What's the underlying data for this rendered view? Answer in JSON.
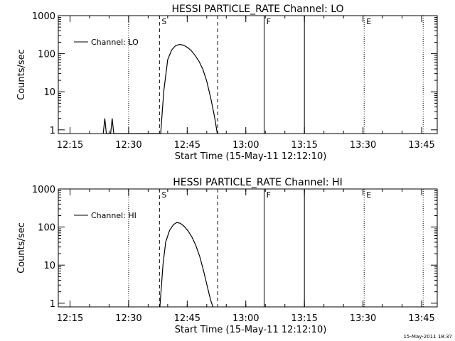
{
  "footer_timestamp": "15-May-2011 18:37",
  "chart_data": [
    {
      "type": "line",
      "title": "HESSI PARTICLE_RATE Channel: LO",
      "xlabel": "Start Time (15-May-11 12:12:10)",
      "ylabel": "Counts/sec",
      "yscale": "log",
      "x_unit": "minutes",
      "xlim": [
        732,
        829
      ],
      "ylim": [
        0.8,
        1000
      ],
      "xticks": [
        "12:15",
        "12:30",
        "12:45",
        "13:00",
        "13:15",
        "13:30",
        "13:45"
      ],
      "xtick_values": [
        735,
        750,
        765,
        780,
        795,
        810,
        825
      ],
      "yticks": [
        "1",
        "10",
        "100",
        "1000"
      ],
      "ytick_values": [
        1,
        10,
        100,
        1000
      ],
      "legend": {
        "label": "Channel: LO",
        "position": "top-left"
      },
      "markers": [
        {
          "label": "S",
          "time": 757.9,
          "style": "dashed"
        },
        {
          "label": "",
          "time": 772.8,
          "style": "dashed"
        },
        {
          "label": "F",
          "time": 784.7,
          "style": "solid"
        },
        {
          "label": "",
          "time": 795.0,
          "style": "solid"
        },
        {
          "label": "E",
          "time": 810.3,
          "style": "dotted"
        },
        {
          "label": "",
          "time": 750.0,
          "style": "dotted"
        },
        {
          "label": "",
          "time": 825.4,
          "style": "dotted"
        }
      ],
      "series": [
        {
          "x": [
            743.5,
            743.9,
            744.3,
            745.4,
            745.8,
            746.2,
            758.2,
            759.0,
            760.0,
            761.0,
            762.0,
            763.0,
            764.0,
            765.0,
            766.0,
            767.0,
            768.0,
            769.0,
            770.0,
            771.0,
            772.0,
            772.7
          ],
          "y": [
            0.8,
            2.0,
            0.8,
            0.8,
            2.0,
            0.8,
            0.8,
            10.5,
            70,
            125,
            162,
            175,
            168,
            148,
            122,
            91,
            64,
            39,
            19,
            7.0,
            2.2,
            0.8
          ]
        }
      ]
    },
    {
      "type": "line",
      "title": "HESSI PARTICLE_RATE Channel: HI",
      "xlabel": "Start Time (15-May-11 12:12:10)",
      "ylabel": "Counts/sec",
      "yscale": "log",
      "x_unit": "minutes",
      "xlim": [
        732,
        829
      ],
      "ylim": [
        0.8,
        1000
      ],
      "xticks": [
        "12:15",
        "12:30",
        "12:45",
        "13:00",
        "13:15",
        "13:30",
        "13:45"
      ],
      "xtick_values": [
        735,
        750,
        765,
        780,
        795,
        810,
        825
      ],
      "yticks": [
        "1",
        "10",
        "100",
        "1000"
      ],
      "ytick_values": [
        1,
        10,
        100,
        1000
      ],
      "legend": {
        "label": "Channel: HI",
        "position": "top-left"
      },
      "markers": [
        {
          "label": "S",
          "time": 757.9,
          "style": "dashed"
        },
        {
          "label": "",
          "time": 772.8,
          "style": "dashed"
        },
        {
          "label": "F",
          "time": 784.7,
          "style": "solid"
        },
        {
          "label": "",
          "time": 795.0,
          "style": "solid"
        },
        {
          "label": "E",
          "time": 810.3,
          "style": "dotted"
        },
        {
          "label": "",
          "time": 750.0,
          "style": "dotted"
        },
        {
          "label": "",
          "time": 825.4,
          "style": "dotted"
        }
      ],
      "series": [
        {
          "x": [
            758.0,
            758.8,
            759.5,
            760.5,
            761.5,
            762.3,
            763.2,
            764.2,
            765.2,
            766.2,
            767.2,
            768.2,
            769.2,
            770.2,
            771.0,
            771.6
          ],
          "y": [
            0.8,
            10.5,
            41,
            82,
            116,
            131,
            126,
            105,
            80,
            55,
            33,
            17,
            7.0,
            2.6,
            1.2,
            0.8
          ]
        }
      ]
    }
  ]
}
